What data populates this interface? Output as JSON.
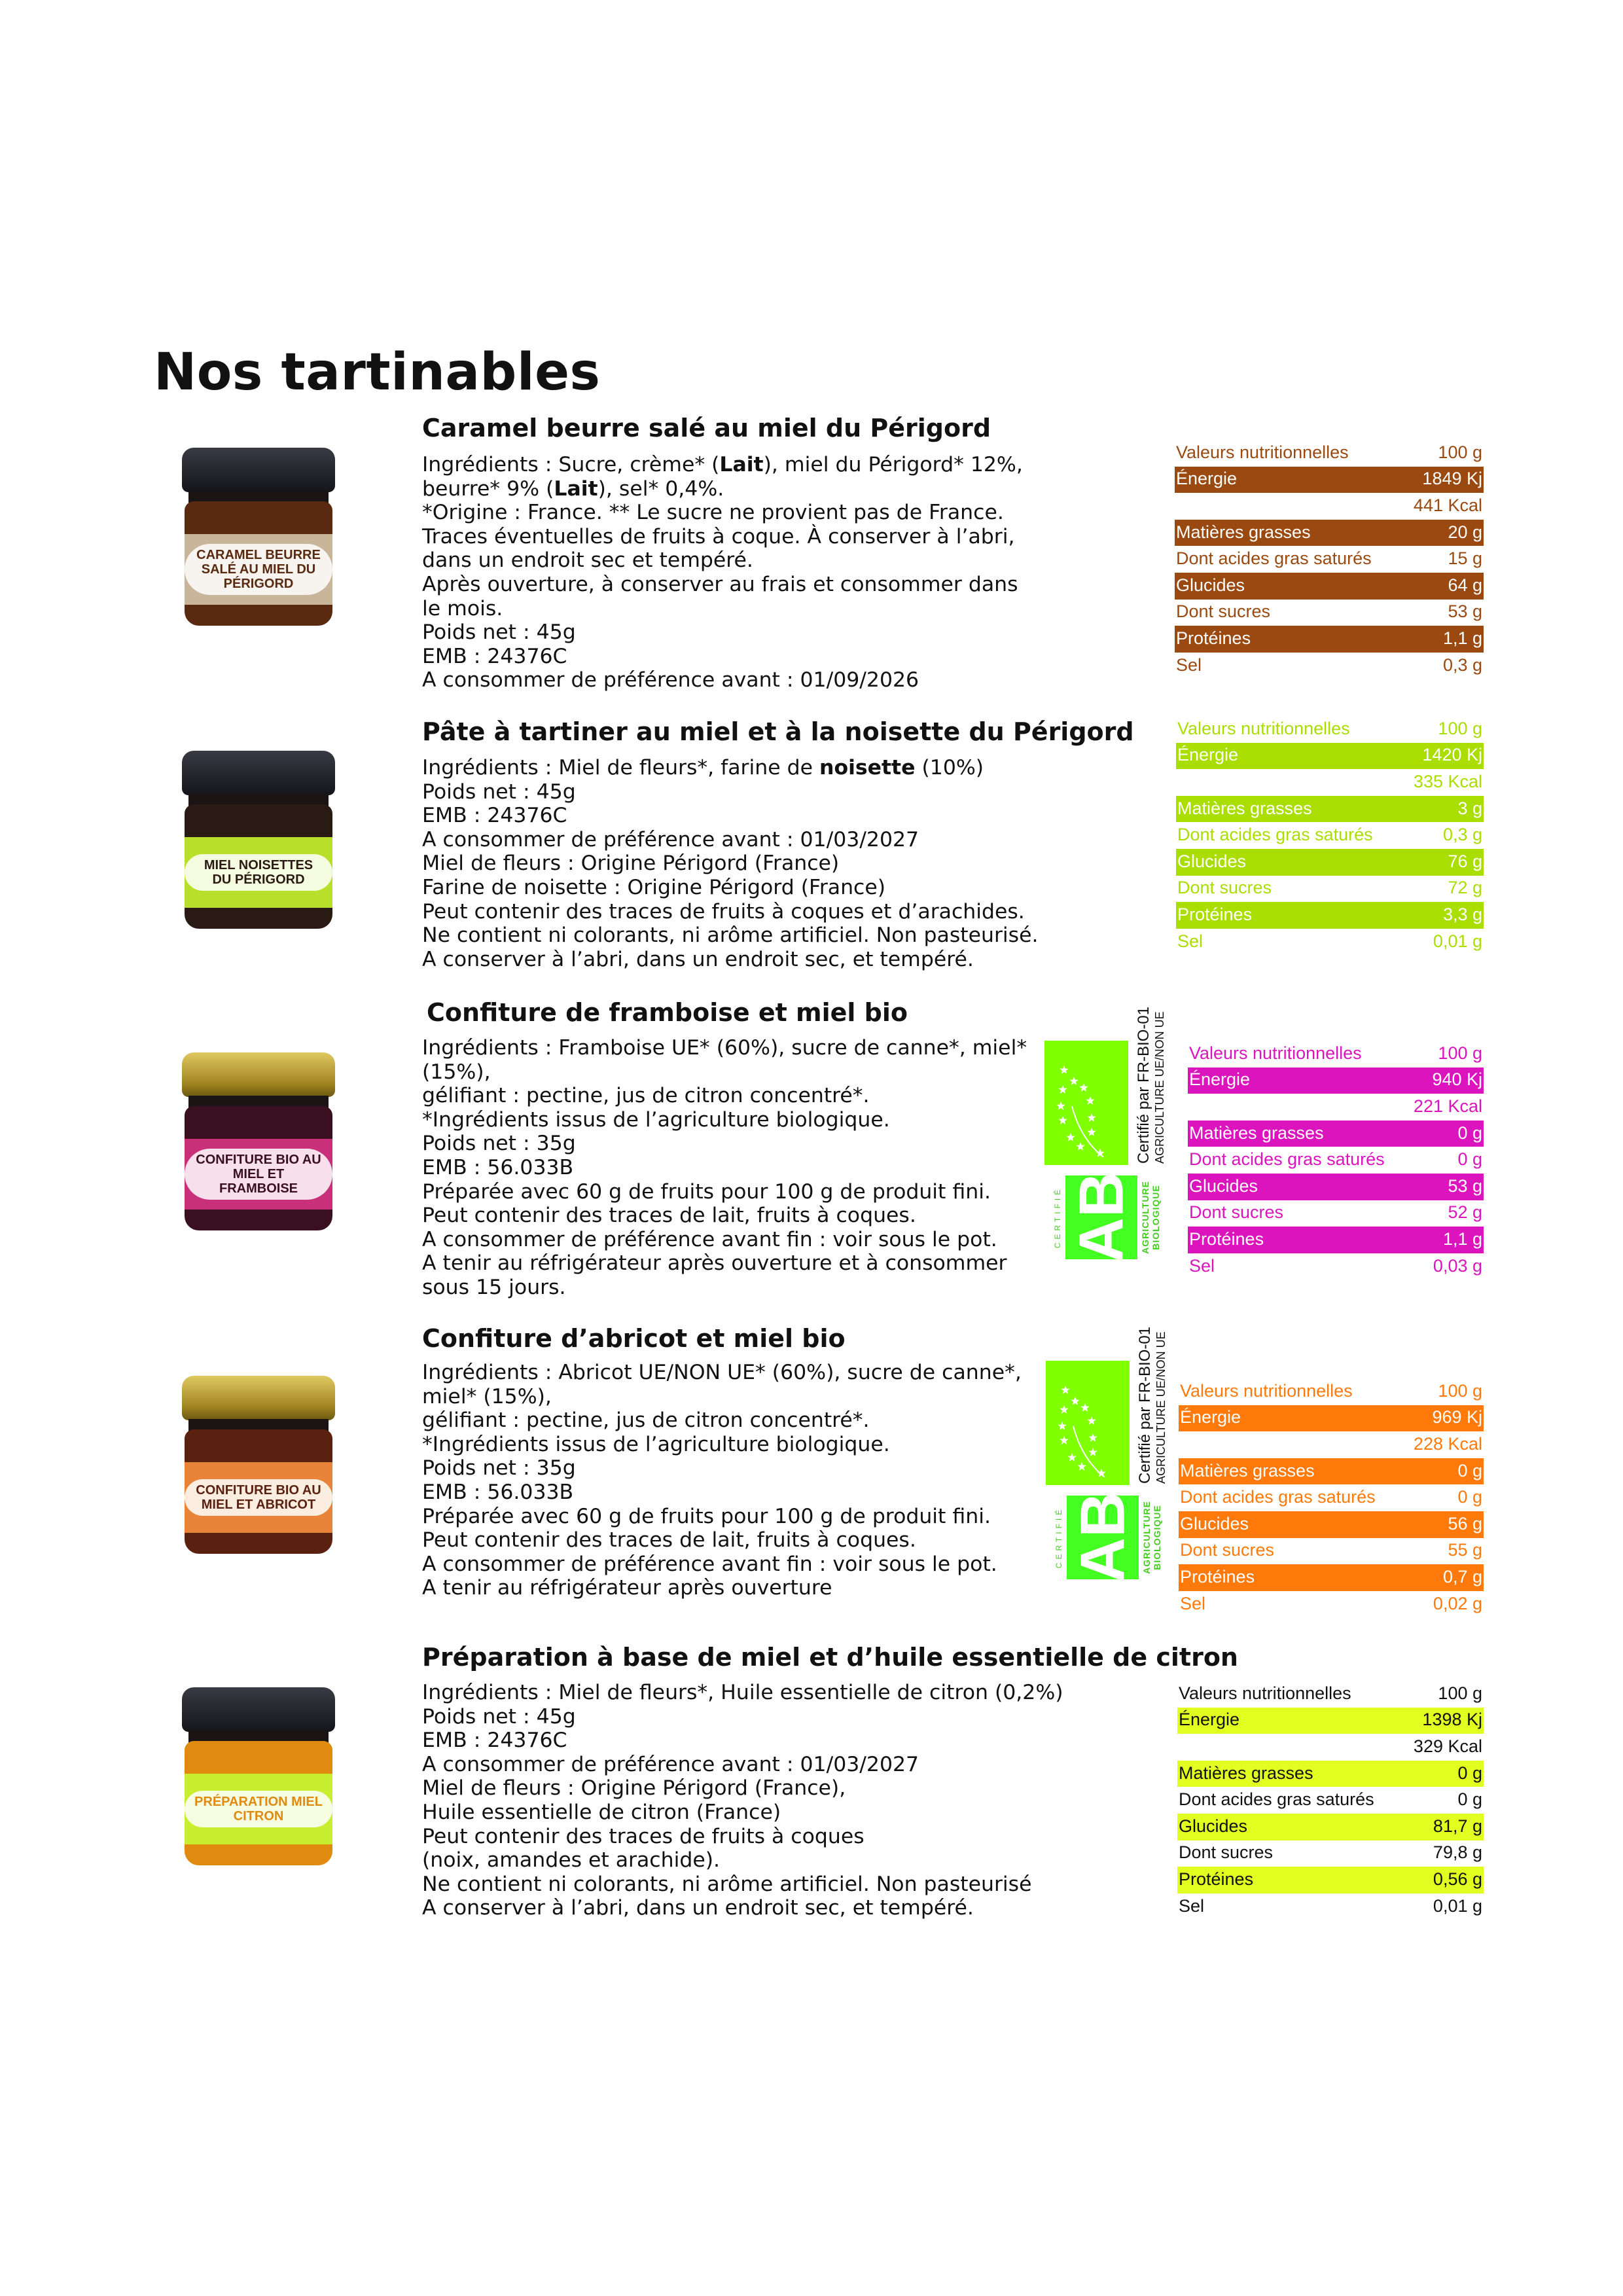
{
  "page_title": "Nos tartinables",
  "nutrition_header": {
    "label": "Valeurs nutritionnelles",
    "unit": "100 g"
  },
  "organic_logos": {
    "eu_line1": "Certifié par FR-BIO-01",
    "eu_line2": "AGRICULTURE UE/NON UE",
    "ab_letters": "AB",
    "ab_left": "CERTIFIÉ",
    "ab_right1": "AGRICULTURE",
    "ab_right2": "BIOLOGIQUE"
  },
  "products": [
    {
      "title": "Caramel beurre salé au miel du Périgord",
      "accent_color": "#9a4a10",
      "text_on_highlight": "#ffffff",
      "jar": {
        "lid": "#1c1c22",
        "content": "#5a2a10",
        "label_color": "#c9b59a",
        "label_text": "CARAMEL BEURRE SALÉ AU MIEL DU PÉRIGORD"
      },
      "organic": false,
      "lines": [
        [
          {
            "t": "Ingrédients : Sucre, crème* ("
          },
          {
            "t": "Lait",
            "b": true
          },
          {
            "t": "), miel du Périgord* 12%,"
          }
        ],
        [
          {
            "t": "beurre* 9% ("
          },
          {
            "t": "Lait",
            "b": true
          },
          {
            "t": "), sel* 0,4%."
          }
        ],
        [
          {
            "t": "*Origine : France. ** Le sucre ne provient pas de France."
          }
        ],
        [
          {
            "t": "Traces éventuelles de fruits à coque. À conserver à l’abri,"
          }
        ],
        [
          {
            "t": "dans un endroit sec et tempéré."
          }
        ],
        [
          {
            "t": "Après ouverture, à conserver au frais et consommer dans"
          }
        ],
        [
          {
            "t": "le mois."
          }
        ],
        [
          {
            "t": "Poids net : 45g"
          }
        ],
        [
          {
            "t": "EMB : 24376C"
          }
        ],
        [
          {
            "t": "A consommer de préférence avant : 01/09/2026"
          }
        ]
      ],
      "nutrition": [
        {
          "label": "Énergie",
          "value": "1849 Kj",
          "hl": true
        },
        {
          "label": "",
          "value": "441 Kcal",
          "hl": false
        },
        {
          "label": "Matières grasses",
          "value": "20 g",
          "hl": true
        },
        {
          "label": "Dont acides gras saturés",
          "value": "15 g",
          "hl": false
        },
        {
          "label": "Glucides",
          "value": "64 g",
          "hl": true
        },
        {
          "label": "Dont sucres",
          "value": "53 g",
          "hl": false
        },
        {
          "label": "Protéines",
          "value": "1,1 g",
          "hl": true
        },
        {
          "label": "Sel",
          "value": "0,3 g",
          "hl": false
        }
      ]
    },
    {
      "title": "Pâte à tartiner au miel et à la noisette du Périgord",
      "accent_color": "#aadd00",
      "text_on_highlight": "#ffffff",
      "jar": {
        "lid": "#1c1c22",
        "content": "#2a1a14",
        "label_color": "#b8e02a",
        "label_text": "MIEL NOISETTES DU PÉRIGORD"
      },
      "organic": false,
      "lines": [
        [
          {
            "t": "Ingrédients : Miel de fleurs*, farine de "
          },
          {
            "t": "noisette",
            "b": true
          },
          {
            "t": " (10%)"
          }
        ],
        [
          {
            "t": "Poids net : 45g"
          }
        ],
        [
          {
            "t": "EMB : 24376C"
          }
        ],
        [
          {
            "t": "A consommer de préférence avant : 01/03/2027"
          }
        ],
        [
          {
            "t": "Miel de fleurs : Origine Périgord (France)"
          }
        ],
        [
          {
            "t": "Farine de noisette : Origine Périgord (France)"
          }
        ],
        [
          {
            "t": "Peut contenir des traces de fruits à coques et d’arachides."
          }
        ],
        [
          {
            "t": "Ne contient ni colorants, ni arôme artificiel. Non pasteurisé."
          }
        ],
        [
          {
            "t": "A conserver à l’abri, dans un endroit sec, et tempéré."
          }
        ]
      ],
      "nutrition": [
        {
          "label": "Énergie",
          "value": "1420 Kj",
          "hl": true
        },
        {
          "label": "",
          "value": "335 Kcal",
          "hl": false
        },
        {
          "label": "Matières grasses",
          "value": "3 g",
          "hl": true
        },
        {
          "label": "Dont acides gras saturés",
          "value": "0,3 g",
          "hl": false
        },
        {
          "label": "Glucides",
          "value": "76 g",
          "hl": true
        },
        {
          "label": "Dont sucres",
          "value": "72 g",
          "hl": false
        },
        {
          "label": "Protéines",
          "value": "3,3 g",
          "hl": true
        },
        {
          "label": "Sel",
          "value": "0,01 g",
          "hl": false
        }
      ]
    },
    {
      "title": "Confiture de framboise et miel bio",
      "accent_color": "#dc14be",
      "text_on_highlight": "#ffffff",
      "jar": {
        "lid": "#c8a830",
        "content": "#3a1020",
        "label_color": "#c8307a",
        "label_text": "CONFITURE BIO AU MIEL ET FRAMBOISE"
      },
      "organic": true,
      "lines": [
        [
          {
            "t": "Ingrédients : Framboise UE* (60%), sucre de canne*, miel*"
          }
        ],
        [
          {
            "t": "(15%),"
          }
        ],
        [
          {
            "t": "gélifiant : pectine, jus de citron concentré*."
          }
        ],
        [
          {
            "t": "*Ingrédients issus de l’agriculture biologique."
          }
        ],
        [
          {
            "t": "Poids net : 35g"
          }
        ],
        [
          {
            "t": "EMB : 56.033B"
          }
        ],
        [
          {
            "t": "Préparée avec 60 g de fruits pour 100 g de produit fini."
          }
        ],
        [
          {
            "t": "Peut contenir des traces de lait, fruits à coques."
          }
        ],
        [
          {
            "t": "A consommer de préférence avant fin : voir sous le pot."
          }
        ],
        [
          {
            "t": "A tenir au réfrigérateur après ouverture et à consommer"
          }
        ],
        [
          {
            "t": "sous 15 jours."
          }
        ]
      ],
      "nutrition": [
        {
          "label": "Énergie",
          "value": "940 Kj",
          "hl": true
        },
        {
          "label": "",
          "value": "221 Kcal",
          "hl": false
        },
        {
          "label": "Matières grasses",
          "value": "0 g",
          "hl": true
        },
        {
          "label": "Dont acides gras saturés",
          "value": "0 g",
          "hl": false
        },
        {
          "label": "Glucides",
          "value": "53 g",
          "hl": true
        },
        {
          "label": "Dont sucres",
          "value": "52 g",
          "hl": false
        },
        {
          "label": "Protéines",
          "value": "1,1 g",
          "hl": true
        },
        {
          "label": "Sel",
          "value": "0,03 g",
          "hl": false
        }
      ]
    },
    {
      "title": "Confiture d’abricot et miel bio",
      "accent_color": "#ff7a0a",
      "text_on_highlight": "#ffffff",
      "jar": {
        "lid": "#c8a830",
        "content": "#5a2010",
        "label_color": "#e8843a",
        "label_text": "CONFITURE BIO AU MIEL ET ABRICOT"
      },
      "organic": true,
      "lines": [
        [
          {
            "t": "Ingrédients : Abricot UE/NON UE* (60%), sucre de canne*,"
          }
        ],
        [
          {
            "t": "miel* (15%),"
          }
        ],
        [
          {
            "t": "gélifiant : pectine, jus de citron concentré*."
          }
        ],
        [
          {
            "t": "*Ingrédients issus de l’agriculture biologique."
          }
        ],
        [
          {
            "t": "Poids net : 35g"
          }
        ],
        [
          {
            "t": "EMB : 56.033B"
          }
        ],
        [
          {
            "t": "Préparée avec 60 g de fruits pour 100 g de produit fini."
          }
        ],
        [
          {
            "t": "Peut contenir des traces de lait, fruits à coques."
          }
        ],
        [
          {
            "t": "A consommer de préférence avant fin : voir sous le pot."
          }
        ],
        [
          {
            "t": "A tenir au réfrigérateur après ouverture"
          }
        ]
      ],
      "nutrition": [
        {
          "label": "Énergie",
          "value": "969 Kj",
          "hl": true
        },
        {
          "label": "",
          "value": "228 Kcal",
          "hl": false
        },
        {
          "label": "Matières grasses",
          "value": "0 g",
          "hl": true
        },
        {
          "label": "Dont acides gras saturés",
          "value": "0 g",
          "hl": false
        },
        {
          "label": "Glucides",
          "value": "56 g",
          "hl": true
        },
        {
          "label": "Dont sucres",
          "value": "55 g",
          "hl": false
        },
        {
          "label": "Protéines",
          "value": "0,7 g",
          "hl": true
        },
        {
          "label": "Sel",
          "value": "0,02 g",
          "hl": false
        }
      ]
    },
    {
      "title": "Préparation à base de miel et d’huile essentielle de citron",
      "accent_color": "#e0ff20",
      "text_on_highlight": "#111111",
      "jar": {
        "lid": "#1c1c22",
        "content": "#e08a10",
        "label_color": "#c8ee30",
        "label_text": "PRÉPARATION MIEL CITRON"
      },
      "organic": false,
      "lines": [
        [
          {
            "t": "Ingrédients : Miel de fleurs*, Huile essentielle de citron (0,2%)"
          }
        ],
        [
          {
            "t": "Poids net : 45g"
          }
        ],
        [
          {
            "t": "EMB : 24376C"
          }
        ],
        [
          {
            "t": "A consommer de préférence avant : 01/03/2027"
          }
        ],
        [
          {
            "t": "Miel de fleurs : Origine Périgord (France),"
          }
        ],
        [
          {
            "t": "Huile essentielle de citron (France)"
          }
        ],
        [
          {
            "t": "Peut contenir des traces de fruits à coques"
          }
        ],
        [
          {
            "t": "(noix, amandes et arachide)."
          }
        ],
        [
          {
            "t": "Ne contient ni colorants, ni arôme artificiel. Non pasteurisé"
          }
        ],
        [
          {
            "t": "A conserver à l’abri, dans un endroit sec, et tempéré."
          }
        ]
      ],
      "nutrition": [
        {
          "label": "Énergie",
          "value": "1398 Kj",
          "hl": true
        },
        {
          "label": "",
          "value": "329 Kcal",
          "hl": false
        },
        {
          "label": "Matières grasses",
          "value": "0 g",
          "hl": true
        },
        {
          "label": "Dont acides gras saturés",
          "value": "0 g",
          "hl": false
        },
        {
          "label": "Glucides",
          "value": "81,7 g",
          "hl": true
        },
        {
          "label": "Dont sucres",
          "value": "79,8 g",
          "hl": false
        },
        {
          "label": "Protéines",
          "value": "0,56 g",
          "hl": true
        },
        {
          "label": "Sel",
          "value": "0,01 g",
          "hl": false
        }
      ]
    }
  ]
}
